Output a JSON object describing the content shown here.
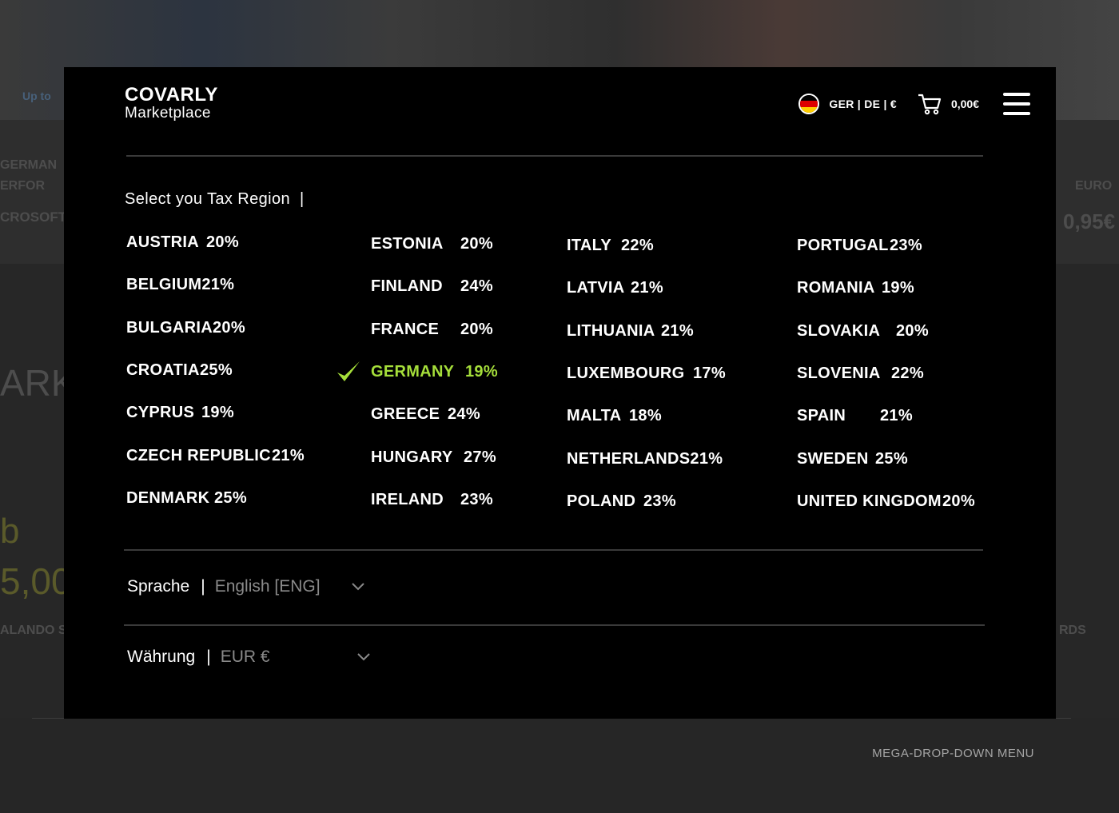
{
  "background": {
    "fragments": [
      "Up to",
      "GERMAN",
      "ERFOR",
      "CROSOFT",
      "0,95€",
      "ARK",
      "b",
      "5,00",
      "ALANDO S",
      "RDS",
      "EURO"
    ]
  },
  "brand": {
    "name": "COVARLY",
    "subtitle": "Marketplace"
  },
  "header": {
    "locale": "GER | DE | €",
    "cart_total": "0,00€",
    "flag_colors": [
      "#000000",
      "#dd0000",
      "#ffce00"
    ]
  },
  "tax_region": {
    "title": "Select you Tax Region",
    "separator": "|",
    "columns": [
      [
        {
          "country": "AUSTRIA",
          "rate": "20%"
        },
        {
          "country": "BELGIUM",
          "rate": "21%"
        },
        {
          "country": "BULGARIA",
          "rate": "20%"
        },
        {
          "country": "CROATIA",
          "rate": "25%"
        },
        {
          "country": "CYPRUS",
          "rate": "19%"
        },
        {
          "country": "CZECH REPUBLIC",
          "rate": "21%"
        },
        {
          "country": "DENMARK",
          "rate": "25%"
        }
      ],
      [
        {
          "country": "ESTONIA",
          "rate": "20%"
        },
        {
          "country": "FINLAND",
          "rate": "24%"
        },
        {
          "country": "FRANCE",
          "rate": "20%"
        },
        {
          "country": "GERMANY",
          "rate": "19%",
          "selected": true
        },
        {
          "country": "GREECE",
          "rate": "24%"
        },
        {
          "country": "HUNGARY",
          "rate": "27%"
        },
        {
          "country": "IRELAND",
          "rate": "23%"
        }
      ],
      [
        {
          "country": "ITALY",
          "rate": "22%"
        },
        {
          "country": "LATVIA",
          "rate": "21%"
        },
        {
          "country": "LITHUANIA",
          "rate": "21%"
        },
        {
          "country": "LUXEMBOURG",
          "rate": "17%"
        },
        {
          "country": "MALTA",
          "rate": "18%"
        },
        {
          "country": "NETHERLANDS",
          "rate": "21%"
        },
        {
          "country": "POLAND",
          "rate": "23%"
        }
      ],
      [
        {
          "country": "PORTUGAL",
          "rate": "23%"
        },
        {
          "country": "ROMANIA",
          "rate": "19%"
        },
        {
          "country": "SLOVAKIA",
          "rate": "20%"
        },
        {
          "country": "SLOVENIA",
          "rate": "22%"
        },
        {
          "country": "SPAIN",
          "rate": "21%"
        },
        {
          "country": "SWEDEN",
          "rate": "25%"
        },
        {
          "country": "UNITED KINGDOM",
          "rate": "20%"
        }
      ]
    ]
  },
  "settings": {
    "language": {
      "label": "Sprache",
      "separator": "|",
      "value": "English [ENG]"
    },
    "currency": {
      "label": "Währung",
      "separator": "|",
      "value": "EUR €"
    }
  },
  "caption": "MEGA-DROP-DOWN MENU",
  "colors": {
    "accent": "#a5de3a",
    "panel": "#000000",
    "muted": "#8a8a8a"
  }
}
